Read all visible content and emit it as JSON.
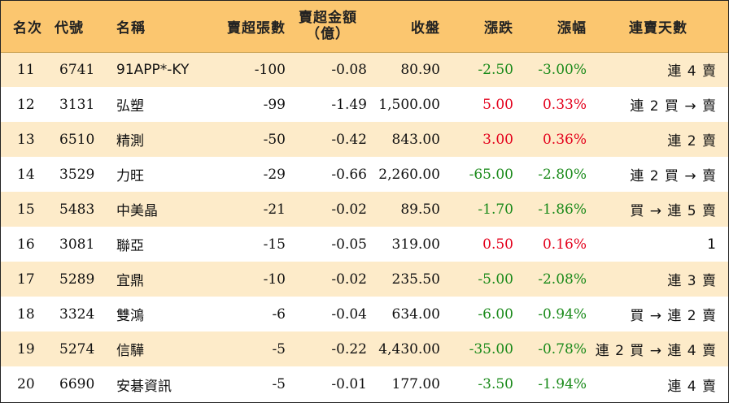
{
  "headers": {
    "rank": "名次",
    "code": "代號",
    "name": "名稱",
    "sell_volume": "賣超張數",
    "sell_amount_line1": "賣超金額",
    "sell_amount_line2": "（億）",
    "close": "收盤",
    "change": "漲跌",
    "change_pct": "漲幅",
    "streak": "連賣天數"
  },
  "rows": [
    {
      "rank": "11",
      "code": "6741",
      "name": "91APP*-KY",
      "sell_volume": "-100",
      "sell_amount": "-0.08",
      "close": "80.90",
      "change": "-2.50",
      "change_pct": "-3.00%",
      "streak": "連 4 賣",
      "direction": "down"
    },
    {
      "rank": "12",
      "code": "3131",
      "name": "弘塑",
      "sell_volume": "-99",
      "sell_amount": "-1.49",
      "close": "1,500.00",
      "change": "5.00",
      "change_pct": "0.33%",
      "streak": "連 2 買 → 賣",
      "direction": "up"
    },
    {
      "rank": "13",
      "code": "6510",
      "name": "精測",
      "sell_volume": "-50",
      "sell_amount": "-0.42",
      "close": "843.00",
      "change": "3.00",
      "change_pct": "0.36%",
      "streak": "連 2 賣",
      "direction": "up"
    },
    {
      "rank": "14",
      "code": "3529",
      "name": "力旺",
      "sell_volume": "-29",
      "sell_amount": "-0.66",
      "close": "2,260.00",
      "change": "-65.00",
      "change_pct": "-2.80%",
      "streak": "連 2 買 → 賣",
      "direction": "down"
    },
    {
      "rank": "15",
      "code": "5483",
      "name": "中美晶",
      "sell_volume": "-21",
      "sell_amount": "-0.02",
      "close": "89.50",
      "change": "-1.70",
      "change_pct": "-1.86%",
      "streak": "買 → 連 5 賣",
      "direction": "down"
    },
    {
      "rank": "16",
      "code": "3081",
      "name": "聯亞",
      "sell_volume": "-15",
      "sell_amount": "-0.05",
      "close": "319.00",
      "change": "0.50",
      "change_pct": "0.16%",
      "streak": "1",
      "direction": "up"
    },
    {
      "rank": "17",
      "code": "5289",
      "name": "宜鼎",
      "sell_volume": "-10",
      "sell_amount": "-0.02",
      "close": "235.50",
      "change": "-5.00",
      "change_pct": "-2.08%",
      "streak": "連 3 賣",
      "direction": "down"
    },
    {
      "rank": "18",
      "code": "3324",
      "name": "雙鴻",
      "sell_volume": "-6",
      "sell_amount": "-0.04",
      "close": "634.00",
      "change": "-6.00",
      "change_pct": "-0.94%",
      "streak": "買 → 連 2 賣",
      "direction": "down"
    },
    {
      "rank": "19",
      "code": "5274",
      "name": "信驊",
      "sell_volume": "-5",
      "sell_amount": "-0.22",
      "close": "4,430.00",
      "change": "-35.00",
      "change_pct": "-0.78%",
      "streak": "連 2 買 → 連 4 賣",
      "direction": "down"
    },
    {
      "rank": "20",
      "code": "6690",
      "name": "安碁資訊",
      "sell_volume": "-5",
      "sell_amount": "-0.01",
      "close": "177.00",
      "change": "-3.50",
      "change_pct": "-1.94%",
      "streak": "連 4 賣",
      "direction": "down"
    }
  ],
  "colors": {
    "header_bg": "#fbc66f",
    "stripe_bg": "#fdebc9",
    "up": "#e3001b",
    "down": "#1a8a1a"
  }
}
